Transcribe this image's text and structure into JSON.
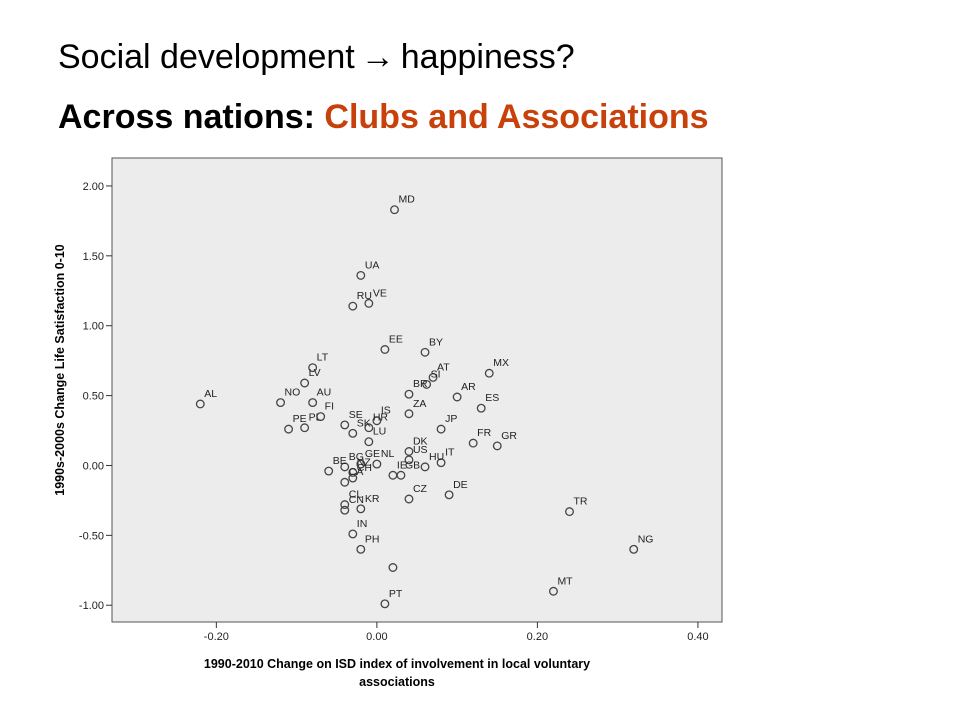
{
  "slide": {
    "title_part1": "Social development",
    "title_arrow": "→",
    "title_part2": "happiness?",
    "subtitle_prefix": "Across nations:",
    "subtitle_accent": "Clubs and Associations",
    "accent_color": "#c8410b"
  },
  "chart_data": {
    "type": "scatter",
    "title": "",
    "xlabel_line1": "1990-2010 Change on ISD index of involvement in  local voluntary",
    "xlabel_line2": "associations",
    "ylabel": "1990s-2000s Change Life Satisfaction 0-10",
    "xlim": [
      -0.33,
      0.43
    ],
    "ylim": [
      -1.12,
      2.2
    ],
    "xticks": [
      -0.2,
      0.0,
      0.2,
      0.4
    ],
    "xtick_labels": [
      "-0.20",
      "0.00",
      "0.20",
      "0.40"
    ],
    "yticks": [
      2.0,
      1.5,
      1.0,
      0.5,
      0.0,
      -0.5,
      -1.0
    ],
    "ytick_labels": [
      "2.00",
      "1.50",
      "1.00",
      "0.50",
      "0.00",
      "-0.50",
      "-1.00"
    ],
    "grid": false,
    "plot_background": "#ececec",
    "marker_color": "#444444",
    "points": [
      {
        "label": "MD",
        "x": 0.022,
        "y": 1.83
      },
      {
        "label": "UA",
        "x": -0.02,
        "y": 1.36
      },
      {
        "label": "VE",
        "x": -0.01,
        "y": 1.16
      },
      {
        "label": "RU",
        "x": -0.03,
        "y": 1.14
      },
      {
        "label": "EE",
        "x": 0.01,
        "y": 0.83
      },
      {
        "label": "BY",
        "x": 0.06,
        "y": 0.81
      },
      {
        "label": "LT",
        "x": -0.08,
        "y": 0.7
      },
      {
        "label": "MX",
        "x": 0.14,
        "y": 0.66
      },
      {
        "label": "LV",
        "x": -0.09,
        "y": 0.59
      },
      {
        "label": "AT",
        "x": 0.07,
        "y": 0.63
      },
      {
        "label": "SI",
        "x": 0.062,
        "y": 0.58
      },
      {
        "label": "AL",
        "x": -0.22,
        "y": 0.44
      },
      {
        "label": "NO",
        "x": -0.12,
        "y": 0.45
      },
      {
        "label": "AU",
        "x": -0.08,
        "y": 0.45
      },
      {
        "label": "BR",
        "x": 0.04,
        "y": 0.51
      },
      {
        "label": "AR",
        "x": 0.1,
        "y": 0.49
      },
      {
        "label": "ES",
        "x": 0.13,
        "y": 0.41
      },
      {
        "label": "ZA",
        "x": 0.04,
        "y": 0.37
      },
      {
        "label": "FI",
        "x": -0.07,
        "y": 0.35
      },
      {
        "label": "IS",
        "x": 0.0,
        "y": 0.32
      },
      {
        "label": "PE",
        "x": -0.11,
        "y": 0.26
      },
      {
        "label": "PL",
        "x": -0.09,
        "y": 0.27
      },
      {
        "label": "SE",
        "x": -0.04,
        "y": 0.29
      },
      {
        "label": "JP",
        "x": 0.08,
        "y": 0.26
      },
      {
        "label": "HR",
        "x": -0.01,
        "y": 0.27
      },
      {
        "label": "SK",
        "x": -0.03,
        "y": 0.23
      },
      {
        "label": "FR",
        "x": 0.12,
        "y": 0.16
      },
      {
        "label": "GR",
        "x": 0.15,
        "y": 0.14
      },
      {
        "label": "LU",
        "x": -0.01,
        "y": 0.17
      },
      {
        "label": "DK",
        "x": 0.04,
        "y": 0.1
      },
      {
        "label": "NL",
        "x": 0.0,
        "y": 0.01
      },
      {
        "label": "US",
        "x": 0.04,
        "y": 0.04
      },
      {
        "label": "GE",
        "x": -0.02,
        "y": 0.01
      },
      {
        "label": "IT",
        "x": 0.08,
        "y": 0.02
      },
      {
        "label": "BG",
        "x": -0.04,
        "y": -0.01
      },
      {
        "label": "BE",
        "x": -0.06,
        "y": -0.04
      },
      {
        "label": "NZ",
        "x": -0.03,
        "y": -0.05
      },
      {
        "label": "IE",
        "x": 0.02,
        "y": -0.07
      },
      {
        "label": "HU",
        "x": 0.06,
        "y": -0.01
      },
      {
        "label": "CH",
        "x": -0.03,
        "y": -0.09
      },
      {
        "label": "GB",
        "x": 0.03,
        "y": -0.07
      },
      {
        "label": "CA",
        "x": -0.04,
        "y": -0.12
      },
      {
        "label": "DE",
        "x": 0.09,
        "y": -0.21
      },
      {
        "label": "CZ",
        "x": 0.04,
        "y": -0.24
      },
      {
        "label": "CL",
        "x": -0.04,
        "y": -0.28
      },
      {
        "label": "KR",
        "x": -0.02,
        "y": -0.31
      },
      {
        "label": "TR",
        "x": 0.24,
        "y": -0.33
      },
      {
        "label": "CN",
        "x": -0.04,
        "y": -0.32
      },
      {
        "label": "IN",
        "x": -0.03,
        "y": -0.49
      },
      {
        "label": "PH",
        "x": -0.02,
        "y": -0.6
      },
      {
        "label": "NG",
        "x": 0.32,
        "y": -0.6
      },
      {
        "label": "MT",
        "x": 0.22,
        "y": -0.9
      },
      {
        "label": "PT",
        "x": 0.01,
        "y": -0.99
      },
      {
        "label": "",
        "x": 0.02,
        "y": -0.73
      }
    ]
  }
}
